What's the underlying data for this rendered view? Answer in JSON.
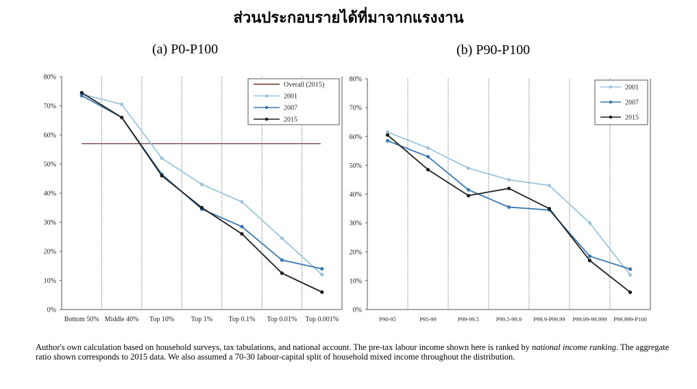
{
  "title": "ส่วนประกอบรายได้ที่มาจากแรงงาน",
  "colors": {
    "s2001": "#9cc3dd",
    "s2007": "#3a78b0",
    "s2015": "#1e1e1e",
    "overall": "#6b2b2b",
    "grid": "#555555"
  },
  "chart_data": [
    {
      "type": "line",
      "title": "(a) P0-P100",
      "categories": [
        "Bottom 50%",
        "Middle 40%",
        "Top 10%",
        "Top 1%",
        "Top 0.1%",
        "Top 0.01%",
        "Top 0.001%"
      ],
      "yticks": [
        "0%",
        "10%",
        "20%",
        "30%",
        "40%",
        "50%",
        "60%",
        "70%",
        "80%"
      ],
      "ylim": [
        0,
        80
      ],
      "legend_position": "top-right",
      "legend": [
        "Overall (2015)",
        "2001",
        "2007",
        "2015"
      ],
      "overall": {
        "name": "Overall (2015)",
        "value": 57
      },
      "series": [
        {
          "name": "2001",
          "values": [
            74,
            70.5,
            52,
            43,
            37,
            24.5,
            12
          ]
        },
        {
          "name": "2007",
          "values": [
            73.5,
            66,
            46.5,
            34.5,
            28.5,
            17,
            14
          ]
        },
        {
          "name": "2015",
          "values": [
            74.5,
            66,
            46,
            35,
            26,
            12.5,
            6
          ]
        }
      ]
    },
    {
      "type": "line",
      "title": "(b) P90-P100",
      "categories": [
        "P90-95",
        "P95-99",
        "P99-99.5",
        "P99.5-99.9",
        "P99.9-P99.99",
        "P99.99-99.999",
        "P99.999-P100"
      ],
      "yticks": [
        "0%",
        "10%",
        "20%",
        "30%",
        "40%",
        "50%",
        "60%",
        "70%",
        "80%"
      ],
      "ylim": [
        0,
        80
      ],
      "legend_position": "top-right",
      "legend": [
        "2001",
        "2007",
        "2015"
      ],
      "series": [
        {
          "name": "2001",
          "values": [
            61.5,
            56,
            49,
            45,
            43,
            30,
            12
          ]
        },
        {
          "name": "2007",
          "values": [
            58.5,
            53,
            41.5,
            35.5,
            34.5,
            18.5,
            14
          ]
        },
        {
          "name": "2015",
          "values": [
            60.5,
            48.5,
            39.5,
            42,
            35,
            17,
            6
          ]
        }
      ]
    }
  ],
  "caption": {
    "part1": "Author's own calculation based on household surveys, tax tabulations, and national account. The pre-tax labour income shown here is ranked by ",
    "italic": "national income ranking",
    "part2": ". The aggregate ratio shown corresponds to 2015 data. We also assumed a 70-30 labour-capital split of household mixed income throughout the distribution."
  }
}
